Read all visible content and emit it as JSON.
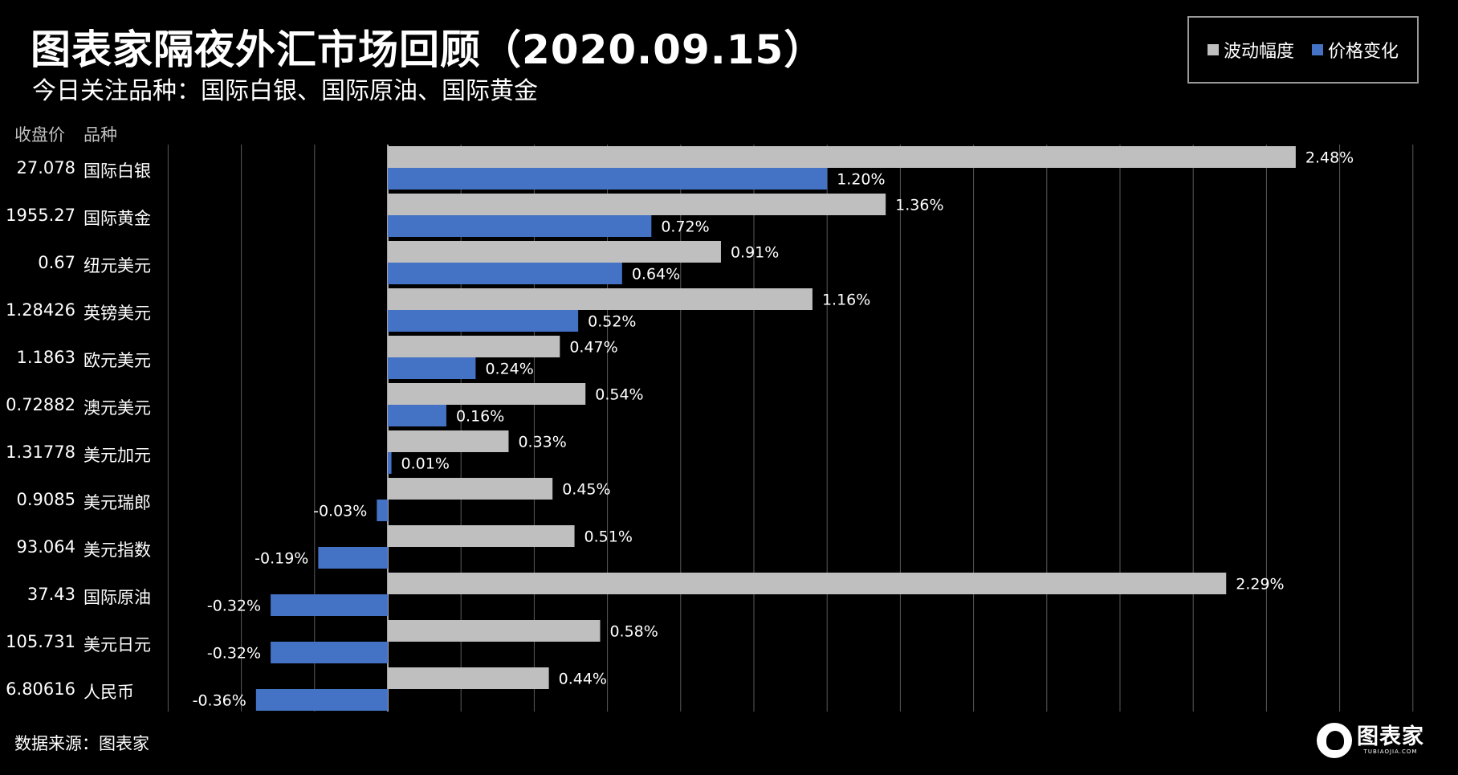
{
  "header": {
    "title": "图表家隔夜外汇市场回顾（2020.09.15）",
    "subtitle": "今日关注品种：国际白银、国际原油、国际黄金"
  },
  "legend": {
    "items": [
      {
        "label": "波动幅度",
        "color": "#bfbfbf"
      },
      {
        "label": "价格变化",
        "color": "#4472c4"
      }
    ]
  },
  "columns": {
    "price_header": "收盘价",
    "variety_header": "品种"
  },
  "colors": {
    "background": "#000000",
    "amplitude": "#bfbfbf",
    "change": "#4472c4",
    "grid": "#5a5a5a"
  },
  "chart_data": {
    "type": "bar",
    "orientation": "horizontal",
    "categories": [
      "国际白银",
      "国际黄金",
      "纽元美元",
      "英镑美元",
      "欧元美元",
      "澳元美元",
      "美元加元",
      "美元瑞郎",
      "美元指数",
      "国际原油",
      "美元日元",
      "人民币"
    ],
    "closing_prices": [
      "27.078",
      "1955.27",
      "0.67",
      "1.28426",
      "1.1863",
      "0.72882",
      "1.31778",
      "0.9085",
      "93.064",
      "37.43",
      "105.731",
      "6.80616"
    ],
    "series": [
      {
        "name": "波动幅度",
        "values": [
          2.48,
          1.36,
          0.91,
          1.16,
          0.47,
          0.54,
          0.33,
          0.45,
          0.51,
          2.29,
          0.58,
          0.44
        ],
        "labels": [
          "2.48%",
          "1.36%",
          "0.91%",
          "1.16%",
          "0.47%",
          "0.54%",
          "0.33%",
          "0.45%",
          "0.51%",
          "2.29%",
          "0.58%",
          "0.44%"
        ]
      },
      {
        "name": "价格变化",
        "values": [
          1.2,
          0.72,
          0.64,
          0.52,
          0.24,
          0.16,
          0.01,
          -0.03,
          -0.19,
          -0.32,
          -0.32,
          -0.36
        ],
        "labels": [
          "1.20%",
          "0.72%",
          "0.64%",
          "0.52%",
          "0.24%",
          "0.16%",
          "0.01%",
          "-0.03%",
          "-0.19%",
          "-0.32%",
          "-0.32%",
          "-0.36%"
        ]
      }
    ],
    "xlim": [
      -0.6,
      2.8
    ],
    "grid_step": 0.2,
    "grid": true,
    "legend_position": "top-right",
    "unit": "%"
  },
  "footer": {
    "source": "数据来源：图表家",
    "logo_text": "图表家",
    "logo_sub": "TUBIAOJIA.COM"
  }
}
